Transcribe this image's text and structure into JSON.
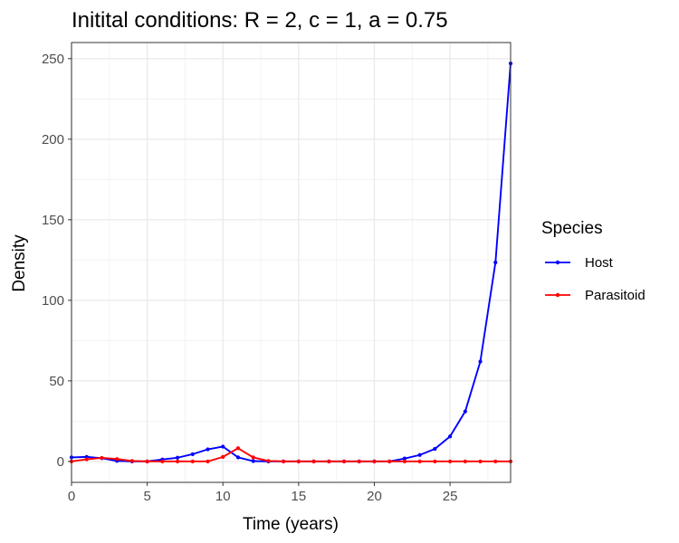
{
  "chart_data": {
    "type": "line",
    "title": "Initital conditions: R = 2, c = 1, a = 0.75",
    "xlabel": "Time (years)",
    "ylabel": "Density",
    "xlim": [
      0,
      29
    ],
    "ylim": [
      -13,
      260
    ],
    "xticks": [
      0,
      5,
      10,
      15,
      20,
      25
    ],
    "yticks": [
      0,
      50,
      100,
      150,
      200,
      250
    ],
    "grid": true,
    "legend_title": "Species",
    "legend_position": "right",
    "x": [
      0,
      1,
      2,
      3,
      4,
      5,
      6,
      7,
      8,
      9,
      10,
      11,
      12,
      13,
      14,
      15,
      16,
      17,
      18,
      19,
      20,
      21,
      22,
      23,
      24,
      25,
      26,
      27,
      28,
      29
    ],
    "series": [
      {
        "name": "Host",
        "color": "#0000ff",
        "values": [
          2.5,
          2.8,
          2.0,
          0.3,
          0.0,
          0.0,
          1.2,
          2.3,
          4.5,
          7.5,
          9.2,
          2.5,
          0.2,
          0.0,
          0.0,
          0.0,
          0.0,
          0.0,
          0.0,
          0.0,
          0.0,
          0.0,
          1.8,
          4.0,
          7.8,
          15.5,
          31.0,
          62.0,
          123.5,
          247.0
        ]
      },
      {
        "name": "Parasitoid",
        "color": "#ff0000",
        "values": [
          0.0,
          1.3,
          2.2,
          1.5,
          0.3,
          0.0,
          0.0,
          0.0,
          0.0,
          0.0,
          2.8,
          8.2,
          2.5,
          0.3,
          0.0,
          0.0,
          0.0,
          0.0,
          0.0,
          0.0,
          0.0,
          0.0,
          0.0,
          0.0,
          0.0,
          0.0,
          0.0,
          0.0,
          0.0,
          0.0
        ]
      }
    ]
  }
}
